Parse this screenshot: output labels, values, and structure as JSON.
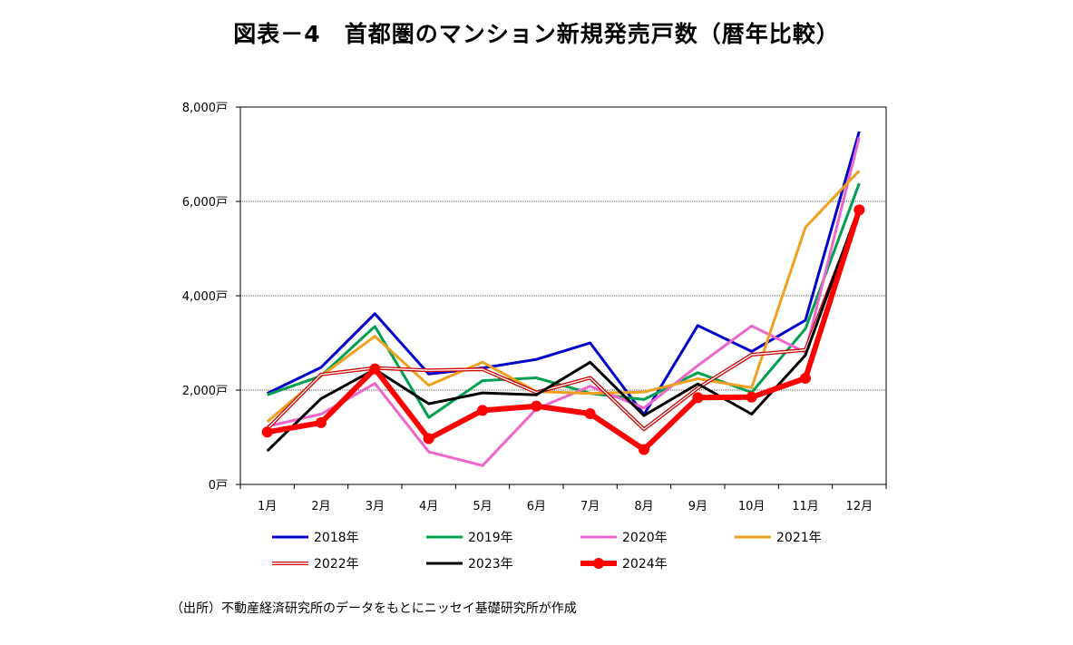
{
  "title": "図表－4　首都圏のマンション新規発売戸数（暦年比較）",
  "source_note": "（出所）不動産経済研究所のデータをもとにニッセイ基礎研究所が作成",
  "chart_data": {
    "type": "line",
    "title": "図表－4　首都圏のマンション新規発売戸数（暦年比較）",
    "xlabel": "",
    "ylabel": "",
    "categories": [
      "1月",
      "2月",
      "3月",
      "4月",
      "5月",
      "6月",
      "7月",
      "8月",
      "9月",
      "10月",
      "11月",
      "12月"
    ],
    "y_ticks": [
      0,
      2000,
      4000,
      6000,
      8000
    ],
    "y_tick_labels": [
      "0戸",
      "2,000戸",
      "4,000戸",
      "6,000戸",
      "8,000戸"
    ],
    "ylim": [
      0,
      8000
    ],
    "grid": "horizontal dotted",
    "legend_position": "bottom",
    "series": [
      {
        "name": "2018年",
        "color": "#0000cc",
        "style": "solid",
        "values": [
          1930,
          2480,
          3620,
          2340,
          2470,
          2650,
          3000,
          1480,
          3370,
          2820,
          3480,
          7480
        ]
      },
      {
        "name": "2019年",
        "color": "#00a050",
        "style": "solid",
        "values": [
          1900,
          2300,
          3350,
          1420,
          2200,
          2260,
          1930,
          1800,
          2370,
          1950,
          3300,
          6380
        ]
      },
      {
        "name": "2020年",
        "color": "#ee66cc",
        "style": "solid",
        "values": [
          1230,
          1490,
          2140,
          690,
          400,
          1600,
          2080,
          1620,
          2520,
          3360,
          2800,
          7360
        ]
      },
      {
        "name": "2021年",
        "color": "#f0a020",
        "style": "solid",
        "values": [
          1330,
          2300,
          3140,
          2100,
          2590,
          1970,
          1930,
          1960,
          2240,
          2050,
          5450,
          6650
        ]
      },
      {
        "name": "2022年",
        "color": "#cc0000",
        "style": "double",
        "values": [
          1180,
          2330,
          2470,
          2420,
          2440,
          1950,
          2260,
          1170,
          2040,
          2750,
          2850,
          5800
        ]
      },
      {
        "name": "2023年",
        "color": "#000000",
        "style": "solid",
        "values": [
          710,
          1820,
          2440,
          1710,
          1940,
          1900,
          2590,
          1460,
          2130,
          1490,
          2740,
          5880
        ]
      },
      {
        "name": "2024年",
        "color": "#ff0000",
        "style": "thick-marker",
        "values": [
          1110,
          1310,
          2450,
          970,
          1570,
          1660,
          1500,
          740,
          1840,
          1850,
          2250,
          5820
        ]
      }
    ]
  }
}
